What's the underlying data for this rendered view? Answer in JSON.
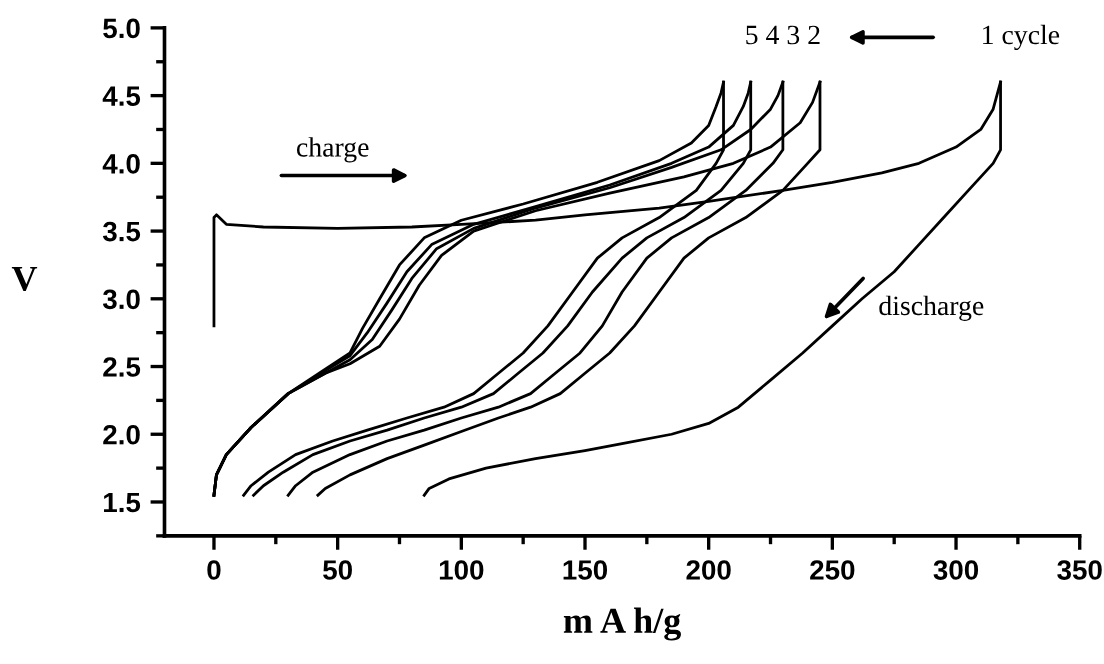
{
  "chart_data": {
    "type": "line",
    "xlabel": "m A h/g",
    "ylabel": "V",
    "xlim": [
      -20,
      350
    ],
    "xticks": [
      0,
      50,
      100,
      150,
      200,
      250,
      300,
      350
    ],
    "ylim": [
      1.25,
      5.0
    ],
    "yticks": [
      {
        "value": 1.5,
        "label": "1.5"
      },
      {
        "value": 2.0,
        "label": "2.0"
      },
      {
        "value": 2.5,
        "label": "2.5"
      },
      {
        "value": 3.0,
        "label": "3.0"
      },
      {
        "value": 3.5,
        "label": "3.5"
      },
      {
        "value": 4.0,
        "label": "4.0"
      },
      {
        "value": 4.5,
        "label": "4.5"
      },
      {
        "value": 5.0,
        "label": "5.0"
      }
    ],
    "grid": false,
    "marker": "none",
    "line_style": "solid",
    "annotations": [
      "5 4 3 2",
      "1 cycle",
      "charge",
      "discharge"
    ],
    "series": [
      {
        "color": "#000000",
        "x": [
          0,
          0,
          1,
          5,
          20,
          50,
          80,
          100,
          130,
          150,
          180,
          200,
          230,
          250,
          270,
          285,
          300,
          310,
          315,
          318
        ],
        "values": [
          2.8,
          3.6,
          3.62,
          3.55,
          3.53,
          3.52,
          3.53,
          3.55,
          3.58,
          3.62,
          3.67,
          3.72,
          3.8,
          3.86,
          3.93,
          4.0,
          4.12,
          4.25,
          4.4,
          4.6
        ]
      },
      {
        "color": "#000000",
        "x": [
          318,
          318,
          315,
          305,
          295,
          285,
          275,
          262,
          250,
          238,
          225,
          212,
          200,
          185,
          165,
          150,
          130,
          110,
          95,
          87,
          85
        ],
        "values": [
          4.6,
          4.1,
          4.0,
          3.8,
          3.6,
          3.4,
          3.2,
          3.0,
          2.8,
          2.6,
          2.4,
          2.2,
          2.08,
          2.0,
          1.93,
          1.88,
          1.82,
          1.75,
          1.67,
          1.6,
          1.55
        ]
      },
      {
        "color": "#000000",
        "x": [
          0,
          1,
          5,
          15,
          30,
          45,
          55,
          67,
          75,
          83,
          92,
          105,
          130,
          160,
          190,
          210,
          225,
          237,
          242,
          245
        ],
        "values": [
          1.55,
          1.7,
          1.85,
          2.05,
          2.3,
          2.45,
          2.52,
          2.65,
          2.85,
          3.1,
          3.32,
          3.5,
          3.65,
          3.78,
          3.9,
          4.0,
          4.12,
          4.3,
          4.45,
          4.6
        ]
      },
      {
        "color": "#000000",
        "x": [
          245,
          245,
          240,
          230,
          215,
          200,
          190,
          180,
          170,
          160,
          150,
          140,
          128,
          115,
          100,
          85,
          70,
          55,
          45,
          42
        ],
        "values": [
          4.6,
          4.1,
          4.0,
          3.8,
          3.6,
          3.45,
          3.3,
          3.05,
          2.8,
          2.6,
          2.45,
          2.3,
          2.2,
          2.12,
          2.02,
          1.92,
          1.82,
          1.7,
          1.6,
          1.55
        ]
      },
      {
        "color": "#000000",
        "x": [
          0,
          1,
          5,
          15,
          30,
          45,
          55,
          64,
          72,
          80,
          90,
          105,
          130,
          160,
          185,
          205,
          217,
          225,
          228,
          230
        ],
        "values": [
          1.55,
          1.7,
          1.85,
          2.05,
          2.3,
          2.45,
          2.55,
          2.7,
          2.92,
          3.15,
          3.37,
          3.52,
          3.67,
          3.82,
          3.97,
          4.1,
          4.25,
          4.4,
          4.5,
          4.6
        ]
      },
      {
        "color": "#000000",
        "x": [
          230,
          230,
          226,
          215,
          200,
          185,
          175,
          165,
          157,
          148,
          138,
          128,
          115,
          100,
          85,
          70,
          55,
          40,
          33,
          30
        ],
        "values": [
          4.6,
          4.1,
          4.0,
          3.8,
          3.6,
          3.45,
          3.3,
          3.05,
          2.8,
          2.6,
          2.45,
          2.3,
          2.2,
          2.12,
          2.03,
          1.95,
          1.85,
          1.72,
          1.62,
          1.55
        ]
      },
      {
        "color": "#000000",
        "x": [
          0,
          1,
          5,
          15,
          30,
          45,
          55,
          62,
          70,
          78,
          88,
          105,
          130,
          160,
          185,
          200,
          210,
          214,
          216,
          217
        ],
        "values": [
          1.55,
          1.7,
          1.85,
          2.05,
          2.3,
          2.47,
          2.58,
          2.75,
          2.97,
          3.2,
          3.4,
          3.55,
          3.68,
          3.84,
          4.0,
          4.12,
          4.28,
          4.42,
          4.52,
          4.6
        ]
      },
      {
        "color": "#000000",
        "x": [
          217,
          217,
          214,
          205,
          190,
          175,
          165,
          153,
          143,
          133,
          123,
          113,
          100,
          85,
          70,
          55,
          40,
          28,
          20,
          16
        ],
        "values": [
          4.6,
          4.1,
          4.0,
          3.8,
          3.6,
          3.45,
          3.3,
          3.05,
          2.8,
          2.6,
          2.45,
          2.3,
          2.2,
          2.12,
          2.03,
          1.95,
          1.85,
          1.72,
          1.62,
          1.55
        ]
      },
      {
        "color": "#000000",
        "x": [
          0,
          1,
          5,
          15,
          30,
          45,
          55,
          60,
          67,
          75,
          85,
          100,
          125,
          155,
          180,
          193,
          200,
          203,
          205,
          206
        ],
        "values": [
          1.55,
          1.7,
          1.85,
          2.05,
          2.3,
          2.48,
          2.6,
          2.78,
          3.0,
          3.25,
          3.45,
          3.58,
          3.7,
          3.86,
          4.02,
          4.15,
          4.28,
          4.42,
          4.52,
          4.6
        ]
      },
      {
        "color": "#000000",
        "x": [
          206,
          206,
          203,
          195,
          180,
          165,
          155,
          145,
          135,
          125,
          115,
          105,
          93,
          78,
          62,
          48,
          33,
          22,
          15,
          12
        ],
        "values": [
          4.6,
          4.1,
          4.0,
          3.8,
          3.6,
          3.45,
          3.3,
          3.05,
          2.8,
          2.6,
          2.45,
          2.3,
          2.2,
          2.12,
          2.03,
          1.95,
          1.85,
          1.72,
          1.62,
          1.55
        ]
      }
    ]
  }
}
